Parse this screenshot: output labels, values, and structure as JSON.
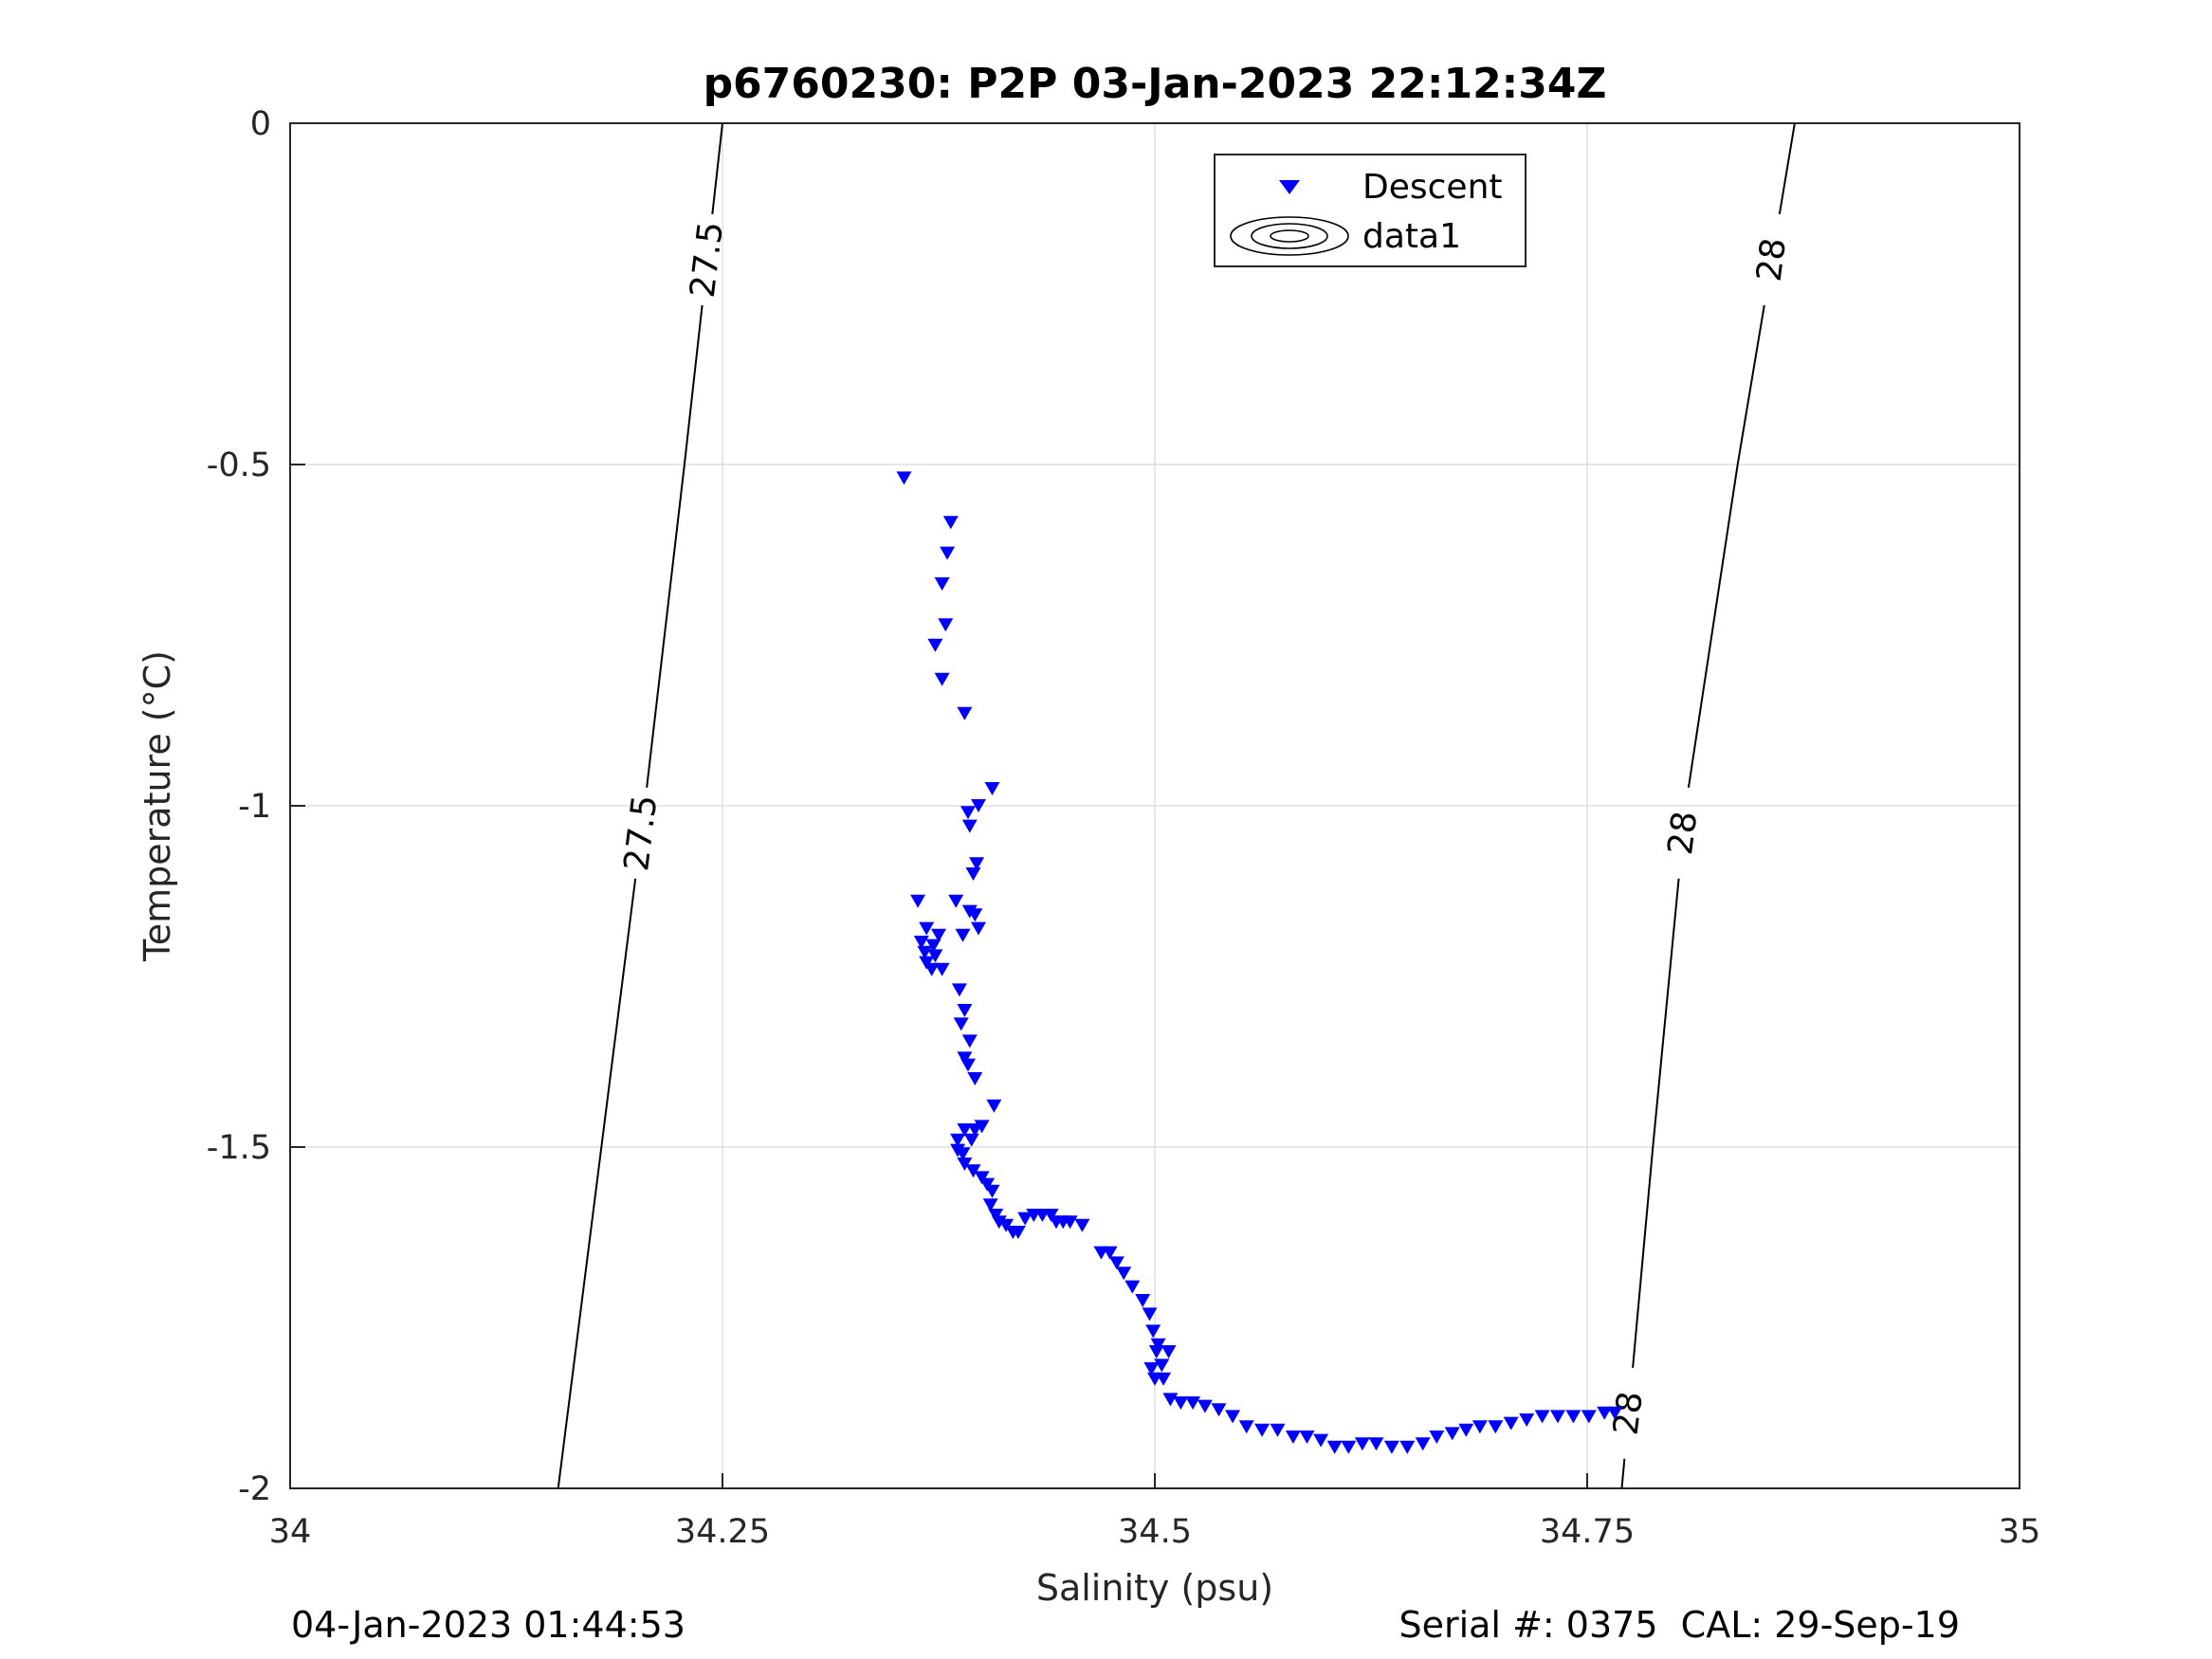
{
  "chart_data": {
    "type": "scatter",
    "title": "p6760230: P2P 03-Jan-2023 22:12:34Z",
    "xlabel": "Salinity (psu)",
    "ylabel": "Temperature (°C)",
    "xlim": [
      34,
      35
    ],
    "ylim": [
      -2,
      0
    ],
    "xticks": [
      34,
      34.25,
      34.5,
      34.75,
      35
    ],
    "xtick_labels": [
      "34",
      "34.25",
      "34.5",
      "34.75",
      "35"
    ],
    "yticks": [
      0,
      -0.5,
      -1,
      -1.5,
      -2
    ],
    "ytick_labels": [
      "0",
      "-0.5",
      "-1",
      "-1.5",
      "-2"
    ],
    "grid": true,
    "legend": {
      "placement": "top-center",
      "entries": [
        {
          "label": "Descent",
          "marker": "triangle-down",
          "color": "#0000ff"
        },
        {
          "label": "data1",
          "marker": "contour",
          "color": "#000000"
        }
      ]
    },
    "contours": [
      {
        "level": "27.5",
        "points": [
          [
            34.155,
            -2.0
          ],
          [
            34.18,
            -1.5
          ],
          [
            34.205,
            -1.0
          ],
          [
            34.228,
            -0.5
          ],
          [
            34.25,
            0.0
          ]
        ],
        "labels_at": [
          -1.04,
          -0.2
        ]
      },
      {
        "level": "28",
        "points": [
          [
            34.77,
            -2.0
          ],
          [
            34.788,
            -1.5
          ],
          [
            34.807,
            -1.0
          ],
          [
            34.837,
            -0.5
          ],
          [
            34.87,
            0.0
          ]
        ],
        "labels_at": [
          -1.89,
          -1.04,
          -0.2
        ]
      }
    ],
    "series": [
      {
        "name": "Descent",
        "color": "#0000ff",
        "marker": "triangle-down",
        "points": [
          [
            34.355,
            -0.52
          ],
          [
            34.382,
            -0.585
          ],
          [
            34.38,
            -0.63
          ],
          [
            34.377,
            -0.675
          ],
          [
            34.379,
            -0.735
          ],
          [
            34.373,
            -0.765
          ],
          [
            34.377,
            -0.815
          ],
          [
            34.39,
            -0.865
          ],
          [
            34.406,
            -0.975
          ],
          [
            34.398,
            -1.0
          ],
          [
            34.392,
            -1.01
          ],
          [
            34.393,
            -1.03
          ],
          [
            34.397,
            -1.085
          ],
          [
            34.395,
            -1.1
          ],
          [
            34.363,
            -1.14
          ],
          [
            34.385,
            -1.14
          ],
          [
            34.393,
            -1.155
          ],
          [
            34.396,
            -1.16
          ],
          [
            34.398,
            -1.18
          ],
          [
            34.389,
            -1.19
          ],
          [
            34.368,
            -1.18
          ],
          [
            34.375,
            -1.19
          ],
          [
            34.365,
            -1.2
          ],
          [
            34.372,
            -1.205
          ],
          [
            34.367,
            -1.215
          ],
          [
            34.373,
            -1.22
          ],
          [
            34.368,
            -1.23
          ],
          [
            34.371,
            -1.24
          ],
          [
            34.377,
            -1.24
          ],
          [
            34.387,
            -1.27
          ],
          [
            34.39,
            -1.3
          ],
          [
            34.388,
            -1.32
          ],
          [
            34.393,
            -1.345
          ],
          [
            34.39,
            -1.37
          ],
          [
            34.392,
            -1.38
          ],
          [
            34.396,
            -1.4
          ],
          [
            34.407,
            -1.44
          ],
          [
            34.39,
            -1.475
          ],
          [
            34.396,
            -1.475
          ],
          [
            34.4,
            -1.47
          ],
          [
            34.386,
            -1.49
          ],
          [
            34.394,
            -1.49
          ],
          [
            34.386,
            -1.505
          ],
          [
            34.389,
            -1.51
          ],
          [
            34.39,
            -1.525
          ],
          [
            34.395,
            -1.535
          ],
          [
            34.4,
            -1.545
          ],
          [
            34.403,
            -1.555
          ],
          [
            34.406,
            -1.565
          ],
          [
            34.405,
            -1.585
          ],
          [
            34.408,
            -1.6
          ],
          [
            34.41,
            -1.61
          ],
          [
            34.414,
            -1.615
          ],
          [
            34.418,
            -1.625
          ],
          [
            34.421,
            -1.625
          ],
          [
            34.425,
            -1.605
          ],
          [
            34.43,
            -1.6
          ],
          [
            34.435,
            -1.6
          ],
          [
            34.44,
            -1.6
          ],
          [
            34.443,
            -1.61
          ],
          [
            34.447,
            -1.61
          ],
          [
            34.451,
            -1.61
          ],
          [
            34.458,
            -1.615
          ],
          [
            34.469,
            -1.655
          ],
          [
            34.474,
            -1.655
          ],
          [
            34.478,
            -1.67
          ],
          [
            34.482,
            -1.685
          ],
          [
            34.487,
            -1.705
          ],
          [
            34.493,
            -1.725
          ],
          [
            34.497,
            -1.745
          ],
          [
            34.499,
            -1.77
          ],
          [
            34.502,
            -1.79
          ],
          [
            34.508,
            -1.8
          ],
          [
            34.501,
            -1.8
          ],
          [
            34.504,
            -1.82
          ],
          [
            34.498,
            -1.825
          ],
          [
            34.5,
            -1.84
          ],
          [
            34.505,
            -1.84
          ],
          [
            34.509,
            -1.87
          ],
          [
            34.515,
            -1.875
          ],
          [
            34.522,
            -1.875
          ],
          [
            34.529,
            -1.88
          ],
          [
            34.537,
            -1.885
          ],
          [
            34.545,
            -1.895
          ],
          [
            34.553,
            -1.91
          ],
          [
            34.562,
            -1.915
          ],
          [
            34.571,
            -1.915
          ],
          [
            34.58,
            -1.925
          ],
          [
            34.588,
            -1.925
          ],
          [
            34.596,
            -1.93
          ],
          [
            34.604,
            -1.94
          ],
          [
            34.612,
            -1.94
          ],
          [
            34.62,
            -1.935
          ],
          [
            34.628,
            -1.935
          ],
          [
            34.637,
            -1.94
          ],
          [
            34.646,
            -1.94
          ],
          [
            34.655,
            -1.935
          ],
          [
            34.663,
            -1.925
          ],
          [
            34.672,
            -1.92
          ],
          [
            34.68,
            -1.915
          ],
          [
            34.688,
            -1.91
          ],
          [
            34.697,
            -1.91
          ],
          [
            34.706,
            -1.905
          ],
          [
            34.715,
            -1.9
          ],
          [
            34.724,
            -1.895
          ],
          [
            34.733,
            -1.895
          ],
          [
            34.742,
            -1.895
          ],
          [
            34.751,
            -1.895
          ],
          [
            34.76,
            -1.89
          ],
          [
            34.766,
            -1.89
          ]
        ]
      }
    ]
  },
  "footer": {
    "left": "04-Jan-2023 01:44:53",
    "right": "Serial #: 0375  CAL: 29-Sep-19"
  }
}
